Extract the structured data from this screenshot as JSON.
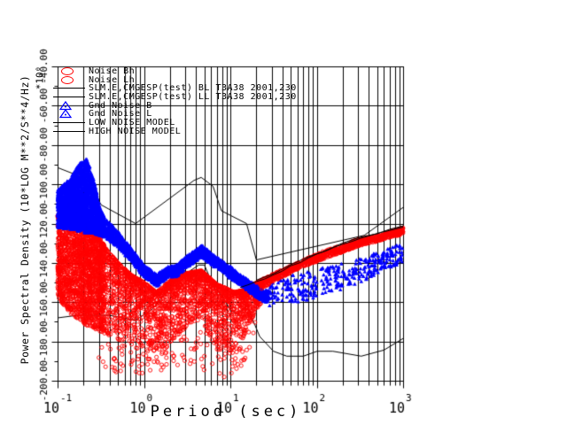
{
  "window": {
    "background": "#ffffff"
  },
  "chart_data": {
    "type": "scatter",
    "title": "",
    "xlabel": "Period (sec)",
    "ylabel": "Power Spectral Density (10*LOG M**2/S**4/Hz)",
    "y_scale_factor": "*10⁰",
    "x_axis": {
      "scale": "log",
      "min": 0.1,
      "max": 1000,
      "tick_base": "10",
      "decade_exponents": [
        "-1",
        "0",
        "1",
        "2",
        "3"
      ]
    },
    "y_axis": {
      "min": -200,
      "max": -40,
      "major_step": 20,
      "minor_step": 10,
      "tick_labels": [
        "-200.00",
        "-180.00",
        "-160.00",
        "-140.00",
        "-120.00",
        "-100.00",
        "-80.00",
        "-60.00",
        "-40.00"
      ]
    },
    "grid": {
      "vertical": "log decades with minors 2-9",
      "horizontal_db": [
        -180,
        -160,
        -140,
        -120,
        -100,
        -80,
        -60
      ],
      "color": "#000000"
    },
    "colors": {
      "noise": "#ff0000",
      "gnd_noise": "#0000ff",
      "models": "#000000"
    },
    "legend": [
      {
        "label": "Noise Bh",
        "marker": "circle",
        "color": "#ff0000"
      },
      {
        "label": "Noise Lh",
        "marker": "circle",
        "color": "#ff0000"
      },
      {
        "label": "SLM.E,CMGESP(test) BL T3A38 2001,230",
        "marker": "line",
        "color": "#000000"
      },
      {
        "label": "SLM.E,CMGESP(test) LL T3A38 2001,230",
        "marker": "line",
        "color": "#000000"
      },
      {
        "label": "Gnd Noise B",
        "marker": "triangle",
        "color": "#0000ff"
      },
      {
        "label": "Gnd Noise L",
        "marker": "triangle",
        "color": "#0000ff"
      },
      {
        "label": "LOW NOISE MODEL",
        "marker": "line",
        "color": "#000000"
      },
      {
        "label": "HIGH NOISE MODEL",
        "marker": "line",
        "color": "#000000"
      }
    ],
    "scatter_series": [
      {
        "name": "Noise Bh",
        "marker": "circle-open",
        "color": "#ff0000",
        "segments": [
          {
            "count": 2200,
            "bias": 1.3,
            "envelope": [
              [
                0.1,
                -115,
                -158
              ],
              [
                0.12,
                -107,
                -162
              ],
              [
                0.14,
                -100,
                -166
              ],
              [
                0.165,
                -108,
                -168
              ],
              [
                0.2,
                -117,
                -171
              ],
              [
                0.25,
                -123,
                -173
              ],
              [
                0.3,
                -127,
                -175
              ],
              [
                0.35,
                -131,
                -176
              ]
            ]
          },
          {
            "count": 2400,
            "bias": 2.0,
            "envelope": [
              [
                0.35,
                -132,
                -176
              ],
              [
                0.5,
                -140,
                -179
              ],
              [
                0.7,
                -146,
                -181
              ],
              [
                1.0,
                -150,
                -183
              ],
              [
                1.4,
                -155,
                -185
              ],
              [
                1.9,
                -150,
                -181
              ],
              [
                2.6,
                -146,
                -176
              ],
              [
                3.4,
                -145,
                -172
              ],
              [
                4.6,
                -144,
                -168
              ],
              [
                5.5,
                -147,
                -176
              ],
              [
                7,
                -151,
                -184
              ],
              [
                9,
                -153,
                -188
              ],
              [
                11,
                -155,
                -186
              ],
              [
                14,
                -154,
                -178
              ],
              [
                18,
                -151,
                -168
              ],
              [
                23,
                -149,
                -160
              ]
            ]
          },
          {
            "count": 130,
            "bias": 1.0,
            "envelope": [
              [
                0.3,
                -177,
                -196
              ],
              [
                0.7,
                -181,
                -197
              ],
              [
                1.5,
                -183,
                -196
              ],
              [
                3,
                -174,
                -194
              ],
              [
                6,
                -176,
                -196
              ],
              [
                9,
                -185,
                -199
              ],
              [
                13,
                -178,
                -194
              ],
              [
                20,
                -162,
                -178
              ]
            ]
          }
        ]
      },
      {
        "name": "Noise Lh",
        "marker": "circle-open",
        "color": "#ff0000",
        "segments": [
          {
            "count": 950,
            "bias": 1.0,
            "envelope": [
              [
                22,
                -149,
                -154
              ],
              [
                30,
                -146,
                -150
              ],
              [
                50,
                -141.5,
                -145
              ],
              [
                80,
                -137.5,
                -141
              ],
              [
                120,
                -134,
                -138
              ],
              [
                200,
                -131,
                -134.5
              ],
              [
                300,
                -128,
                -131.5
              ],
              [
                500,
                -126,
                -129
              ],
              [
                700,
                -124,
                -127
              ],
              [
                1000,
                -122,
                -125.5
              ]
            ]
          }
        ]
      },
      {
        "name": "Gnd Noise B",
        "marker": "triangle",
        "color": "#0000ff",
        "segments": [
          {
            "count": 2600,
            "bias": 1.0,
            "envelope": [
              [
                0.1,
                -103,
                -122
              ],
              [
                0.14,
                -97,
                -123
              ],
              [
                0.18,
                -89,
                -124
              ],
              [
                0.22,
                -87,
                -125
              ],
              [
                0.26,
                -97,
                -125
              ],
              [
                0.31,
                -112,
                -126
              ],
              [
                0.35,
                -117,
                -127
              ]
            ]
          },
          {
            "count": 2600,
            "bias": 1.0,
            "envelope": [
              [
                0.35,
                -117,
                -127
              ],
              [
                0.5,
                -124,
                -132
              ],
              [
                0.7,
                -132,
                -139
              ],
              [
                1.0,
                -141,
                -147
              ],
              [
                1.4,
                -146,
                -152
              ],
              [
                1.9,
                -142,
                -147
              ],
              [
                2.4,
                -141,
                -147
              ],
              [
                3.0,
                -137,
                -143
              ],
              [
                4.7,
                -131,
                -137
              ],
              [
                6.0,
                -135,
                -141
              ],
              [
                8.0,
                -139,
                -144
              ],
              [
                10,
                -142,
                -148
              ],
              [
                13,
                -146,
                -151
              ],
              [
                18,
                -150,
                -156
              ],
              [
                25,
                -154,
                -160
              ],
              [
                28,
                -154,
                -160
              ]
            ]
          }
        ]
      },
      {
        "name": "Gnd Noise L",
        "marker": "triangle",
        "color": "#0000ff",
        "segments": [
          {
            "count": 330,
            "bias": 1.0,
            "envelope": [
              [
                28,
                -150,
                -162
              ],
              [
                40,
                -148,
                -160
              ],
              [
                60,
                -145,
                -160
              ],
              [
                100,
                -143,
                -158
              ],
              [
                160,
                -141,
                -155
              ],
              [
                250,
                -139,
                -152
              ],
              [
                400,
                -136,
                -148
              ],
              [
                650,
                -133,
                -143
              ],
              [
                1000,
                -130,
                -140
              ]
            ]
          }
        ]
      }
    ],
    "line_series": [
      {
        "name": "SLM.E,CMGESP(test) BL T3A38 2001,230",
        "color": "#000000",
        "points": [
          [
            13,
            -152.5
          ],
          [
            16,
            -151.2
          ],
          [
            20,
            -149.5
          ],
          [
            25,
            -148.2
          ],
          [
            32,
            -146.0
          ],
          [
            40,
            -144.2
          ],
          [
            50,
            -141.5
          ],
          [
            65,
            -139.8
          ],
          [
            80,
            -137.5
          ],
          [
            100,
            -135.5
          ],
          [
            130,
            -133.8
          ],
          [
            160,
            -132.0
          ],
          [
            200,
            -130.5
          ],
          [
            260,
            -129.0
          ],
          [
            320,
            -127.5
          ],
          [
            420,
            -126.0
          ],
          [
            550,
            -124.5
          ],
          [
            700,
            -123.5
          ],
          [
            1000,
            -121.8
          ]
        ]
      },
      {
        "name": "SLM.E,CMGESP(test) LL T3A38 2001,230",
        "color": "#000000",
        "points": [
          [
            20,
            -148.8
          ],
          [
            32,
            -145.4
          ],
          [
            50,
            -140.9
          ],
          [
            80,
            -136.9
          ],
          [
            120,
            -134.2
          ],
          [
            200,
            -129.9
          ],
          [
            320,
            -126.9
          ],
          [
            500,
            -125.2
          ],
          [
            700,
            -122.9
          ],
          [
            1000,
            -121.2
          ]
        ]
      },
      {
        "name": "LOW NOISE MODEL",
        "color": "#000000",
        "points": [
          [
            0.1,
            -168.0
          ],
          [
            0.17,
            -166.7
          ],
          [
            0.4,
            -166.7
          ],
          [
            0.8,
            -169.2
          ],
          [
            1.24,
            -163.7
          ],
          [
            2.4,
            -148.6
          ],
          [
            4.3,
            -141.1
          ],
          [
            5.0,
            -141.1
          ],
          [
            6.0,
            -149.0
          ],
          [
            10.0,
            -163.8
          ],
          [
            12.0,
            -166.2
          ],
          [
            15.6,
            -162.1
          ],
          [
            21.9,
            -177.5
          ],
          [
            31.6,
            -185.0
          ],
          [
            45.0,
            -187.5
          ],
          [
            70.0,
            -187.5
          ],
          [
            101,
            -185.0
          ],
          [
            154,
            -185.0
          ],
          [
            328,
            -187.5
          ],
          [
            600,
            -184.4
          ],
          [
            1000,
            -178.5
          ]
        ]
      },
      {
        "name": "HIGH NOISE MODEL",
        "color": "#000000",
        "points": [
          [
            0.1,
            -91.5
          ],
          [
            0.22,
            -97.4
          ],
          [
            0.32,
            -110.5
          ],
          [
            0.8,
            -120.0
          ],
          [
            3.8,
            -98.0
          ],
          [
            4.6,
            -96.5
          ],
          [
            6.3,
            -101.0
          ],
          [
            7.9,
            -113.5
          ],
          [
            15.4,
            -120.0
          ],
          [
            20.0,
            -138.5
          ],
          [
            354.8,
            -126.0
          ],
          [
            1000,
            -111.8
          ]
        ]
      }
    ]
  }
}
